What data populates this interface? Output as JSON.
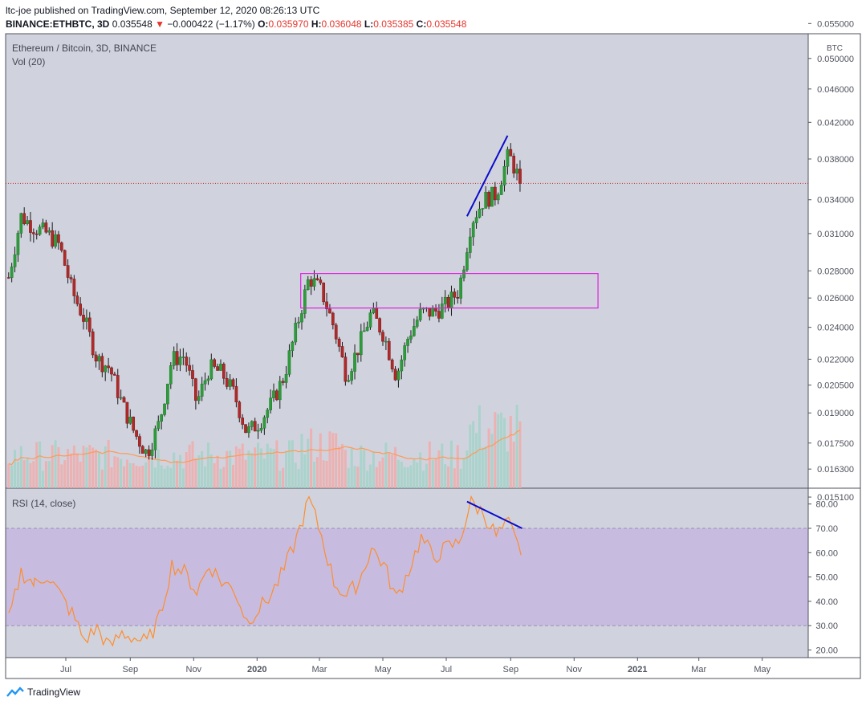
{
  "header": {
    "line1": "ltc-joe published on TradingView.com, September 12, 2020 08:26:13 UTC",
    "symbol": "BINANCE:ETHBTC, 3D",
    "price": "0.035548",
    "change": "−0.000422 (−1.17%)",
    "o_label": "O:",
    "o_value": "0.035970",
    "h_label": "H:",
    "h_value": "0.036048",
    "l_label": "L:",
    "l_value": "0.035385",
    "c_label": "C:",
    "c_value": "0.035548"
  },
  "brand": {
    "name": "TradingView"
  },
  "colors": {
    "up": "#26a69a",
    "down": "#ef5350",
    "trend": "#0b0bcc",
    "zone": "#e020e0",
    "rsi": "#ff8c2e",
    "vol_ma": "#ff9a55",
    "price_line": "#c82a2a"
  },
  "chart_data": [
    {
      "type": "candlestick",
      "title": "Ethereum / Bitcoin, 3D, BINANCE",
      "volume_label": "Vol (20)",
      "unit_label": "BTC",
      "y_ticks": [
        0.0151,
        0.0163,
        0.0175,
        0.019,
        0.0205,
        0.022,
        0.024,
        0.026,
        0.028,
        0.031,
        0.034,
        0.038,
        0.042,
        0.046,
        0.05,
        0.055
      ],
      "y_tick_labels": [
        "0.015100",
        "0.016300",
        "0.017500",
        "0.019000",
        "0.020500",
        "0.022000",
        "0.024000",
        "0.026000",
        "0.028000",
        "0.031000",
        "0.034000",
        "0.038000",
        "0.042000",
        "0.046000",
        "0.050000",
        "0.055000"
      ],
      "x_tick_labels": [
        "Jul",
        "Sep",
        "Nov",
        "2020",
        "Mar",
        "May",
        "Jul",
        "Sep",
        "Nov",
        "2021",
        "Mar",
        "May"
      ],
      "x_tick_months": [
        "2019-07",
        "2019-09",
        "2019-11",
        "2020-01",
        "2020-03",
        "2020-05",
        "2020-07",
        "2020-09",
        "2020-11",
        "2021-01",
        "2021-03",
        "2021-05"
      ],
      "scale": "log",
      "current_price": 0.035548,
      "closes": [
        {
          "date": "2019-05-07",
          "close": 0.0275
        },
        {
          "date": "2019-05-19",
          "close": 0.0325
        },
        {
          "date": "2019-06-01",
          "close": 0.0315
        },
        {
          "date": "2019-06-13",
          "close": 0.031
        },
        {
          "date": "2019-06-25",
          "close": 0.03
        },
        {
          "date": "2019-07-07",
          "close": 0.0265
        },
        {
          "date": "2019-07-19",
          "close": 0.0245
        },
        {
          "date": "2019-07-31",
          "close": 0.022
        },
        {
          "date": "2019-08-12",
          "close": 0.0215
        },
        {
          "date": "2019-08-24",
          "close": 0.0195
        },
        {
          "date": "2019-09-05",
          "close": 0.018
        },
        {
          "date": "2019-09-17",
          "close": 0.017
        },
        {
          "date": "2019-09-29",
          "close": 0.0185
        },
        {
          "date": "2019-10-11",
          "close": 0.022
        },
        {
          "date": "2019-10-23",
          "close": 0.0222
        },
        {
          "date": "2019-11-04",
          "close": 0.0195
        },
        {
          "date": "2019-11-16",
          "close": 0.0215
        },
        {
          "date": "2019-11-28",
          "close": 0.0212
        },
        {
          "date": "2019-12-10",
          "close": 0.02
        },
        {
          "date": "2019-12-22",
          "close": 0.018
        },
        {
          "date": "2020-01-03",
          "close": 0.0185
        },
        {
          "date": "2020-01-15",
          "close": 0.0195
        },
        {
          "date": "2020-01-27",
          "close": 0.021
        },
        {
          "date": "2020-02-08",
          "close": 0.024
        },
        {
          "date": "2020-02-20",
          "close": 0.0275
        },
        {
          "date": "2020-03-03",
          "close": 0.0265
        },
        {
          "date": "2020-03-15",
          "close": 0.024
        },
        {
          "date": "2020-03-27",
          "close": 0.021
        },
        {
          "date": "2020-04-08",
          "close": 0.0228
        },
        {
          "date": "2020-04-20",
          "close": 0.025
        },
        {
          "date": "2020-05-02",
          "close": 0.0235
        },
        {
          "date": "2020-05-14",
          "close": 0.021
        },
        {
          "date": "2020-05-26",
          "close": 0.0235
        },
        {
          "date": "2020-06-07",
          "close": 0.025
        },
        {
          "date": "2020-06-19",
          "close": 0.025
        },
        {
          "date": "2020-07-01",
          "close": 0.0255
        },
        {
          "date": "2020-07-13",
          "close": 0.0265
        },
        {
          "date": "2020-07-25",
          "close": 0.032
        },
        {
          "date": "2020-08-06",
          "close": 0.034
        },
        {
          "date": "2020-08-18",
          "close": 0.0345
        },
        {
          "date": "2020-08-30",
          "close": 0.0385
        },
        {
          "date": "2020-09-11",
          "close": 0.035548
        }
      ],
      "annotations": [
        {
          "type": "rectangle",
          "from_date": "2020-02-12",
          "to_date": "2020-11-24",
          "from_price": 0.0253,
          "to_price": 0.0278
        },
        {
          "type": "trendline",
          "from_date": "2020-07-21",
          "from_price": 0.0325,
          "to_date": "2020-08-29",
          "to_price": 0.0405
        }
      ]
    },
    {
      "type": "line",
      "title": "RSI (14, close)",
      "y_ticks": [
        20,
        30,
        40,
        50,
        60,
        70,
        80
      ],
      "y_tick_labels": [
        "20.00",
        "30.00",
        "40.00",
        "50.00",
        "60.00",
        "70.00",
        "80.00"
      ],
      "band": [
        30,
        70
      ],
      "series": [
        {
          "values": [
            {
              "date": "2019-05-07",
              "value": 32
            },
            {
              "date": "2019-05-19",
              "value": 52
            },
            {
              "date": "2019-06-01",
              "value": 47
            },
            {
              "date": "2019-06-13",
              "value": 51
            },
            {
              "date": "2019-06-25",
              "value": 43
            },
            {
              "date": "2019-07-07",
              "value": 35
            },
            {
              "date": "2019-07-19",
              "value": 24
            },
            {
              "date": "2019-07-31",
              "value": 29
            },
            {
              "date": "2019-08-12",
              "value": 21
            },
            {
              "date": "2019-08-24",
              "value": 27
            },
            {
              "date": "2019-09-05",
              "value": 25
            },
            {
              "date": "2019-09-17",
              "value": 23
            },
            {
              "date": "2019-09-29",
              "value": 33
            },
            {
              "date": "2019-10-11",
              "value": 55
            },
            {
              "date": "2019-10-23",
              "value": 52
            },
            {
              "date": "2019-11-04",
              "value": 44
            },
            {
              "date": "2019-11-16",
              "value": 55
            },
            {
              "date": "2019-11-28",
              "value": 48
            },
            {
              "date": "2019-12-10",
              "value": 45
            },
            {
              "date": "2019-12-22",
              "value": 32
            },
            {
              "date": "2020-01-03",
              "value": 37
            },
            {
              "date": "2020-01-15",
              "value": 43
            },
            {
              "date": "2020-01-27",
              "value": 53
            },
            {
              "date": "2020-02-08",
              "value": 66
            },
            {
              "date": "2020-02-20",
              "value": 82
            },
            {
              "date": "2020-03-03",
              "value": 67
            },
            {
              "date": "2020-03-15",
              "value": 48
            },
            {
              "date": "2020-03-27",
              "value": 42
            },
            {
              "date": "2020-04-08",
              "value": 48
            },
            {
              "date": "2020-04-20",
              "value": 62
            },
            {
              "date": "2020-05-02",
              "value": 55
            },
            {
              "date": "2020-05-14",
              "value": 41
            },
            {
              "date": "2020-05-26",
              "value": 53
            },
            {
              "date": "2020-06-07",
              "value": 66
            },
            {
              "date": "2020-06-19",
              "value": 58
            },
            {
              "date": "2020-07-01",
              "value": 62
            },
            {
              "date": "2020-07-13",
              "value": 64
            },
            {
              "date": "2020-07-25",
              "value": 81
            },
            {
              "date": "2020-08-06",
              "value": 76
            },
            {
              "date": "2020-08-18",
              "value": 67
            },
            {
              "date": "2020-08-30",
              "value": 72
            },
            {
              "date": "2020-09-11",
              "value": 59
            }
          ]
        }
      ],
      "annotations": [
        {
          "type": "trendline",
          "from_date": "2020-07-21",
          "from_value": 81,
          "to_date": "2020-09-12",
          "to_value": 70
        }
      ]
    }
  ]
}
